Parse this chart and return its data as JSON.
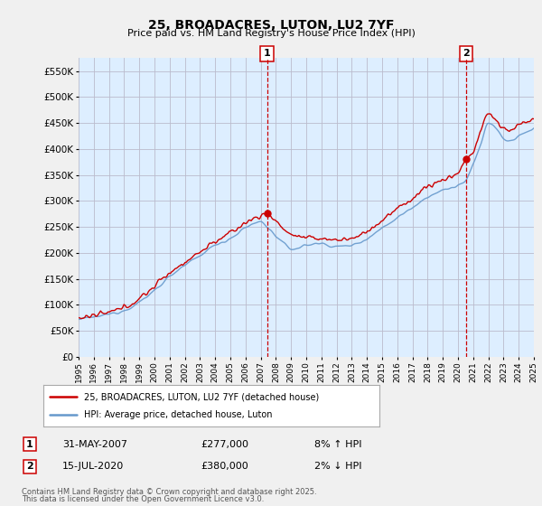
{
  "title": "25, BROADACRES, LUTON, LU2 7YF",
  "subtitle": "Price paid vs. HM Land Registry's House Price Index (HPI)",
  "bg_color": "#f0f0f0",
  "plot_bg_color": "#ddeeff",
  "grid_color": "#bbbbcc",
  "hpi_color": "#6699cc",
  "price_color": "#cc0000",
  "marker_color": "#cc0000",
  "ylim": [
    0,
    575000
  ],
  "yticks": [
    0,
    50000,
    100000,
    150000,
    200000,
    250000,
    300000,
    350000,
    400000,
    450000,
    500000,
    550000
  ],
  "sale1_x": 2007.42,
  "sale1_price": 277000,
  "sale2_x": 2020.54,
  "sale2_price": 380000,
  "legend_line1": "25, BROADACRES, LUTON, LU2 7YF (detached house)",
  "legend_line2": "HPI: Average price, detached house, Luton",
  "footnote1": "Contains HM Land Registry data © Crown copyright and database right 2025.",
  "footnote2": "This data is licensed under the Open Government Licence v3.0.",
  "x_start_year": 1995,
  "x_end_year": 2025
}
